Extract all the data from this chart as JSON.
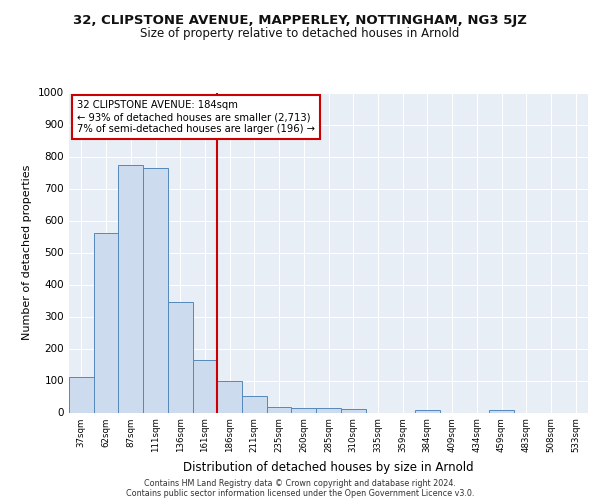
{
  "title_line1": "32, CLIPSTONE AVENUE, MAPPERLEY, NOTTINGHAM, NG3 5JZ",
  "title_line2": "Size of property relative to detached houses in Arnold",
  "xlabel": "Distribution of detached houses by size in Arnold",
  "ylabel": "Number of detached properties",
  "bar_color": "#ccdcee",
  "bar_edge_color": "#5588bb",
  "bins": [
    "37sqm",
    "62sqm",
    "87sqm",
    "111sqm",
    "136sqm",
    "161sqm",
    "186sqm",
    "211sqm",
    "235sqm",
    "260sqm",
    "285sqm",
    "310sqm",
    "335sqm",
    "359sqm",
    "384sqm",
    "409sqm",
    "434sqm",
    "459sqm",
    "483sqm",
    "508sqm",
    "533sqm"
  ],
  "bin_values": [
    112,
    562,
    775,
    765,
    345,
    165,
    98,
    52,
    18,
    15,
    13,
    12,
    0,
    0,
    8,
    0,
    0,
    8,
    0,
    0,
    0
  ],
  "vline_pos": 5.5,
  "vline_color": "#cc0000",
  "annotation_text": "32 CLIPSTONE AVENUE: 184sqm\n← 93% of detached houses are smaller (2,713)\n7% of semi-detached houses are larger (196) →",
  "annotation_box_color": "#ffffff",
  "annotation_box_edge": "#cc0000",
  "ylim": [
    0,
    1000
  ],
  "yticks": [
    0,
    100,
    200,
    300,
    400,
    500,
    600,
    700,
    800,
    900,
    1000
  ],
  "footnote_line1": "Contains HM Land Registry data © Crown copyright and database right 2024.",
  "footnote_line2": "Contains public sector information licensed under the Open Government Licence v3.0.",
  "bg_color": "#e8eef6",
  "fig_bg_color": "#ffffff"
}
